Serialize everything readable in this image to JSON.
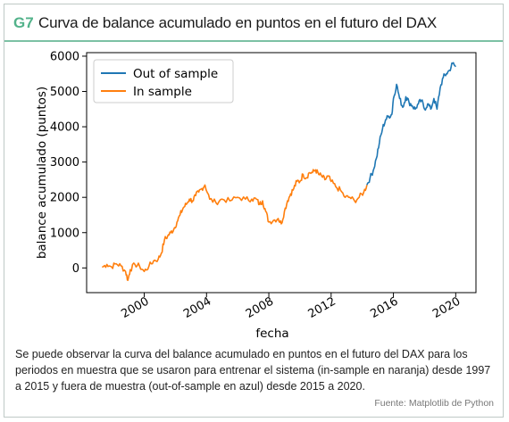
{
  "header": {
    "code": "G7",
    "title": "Curva de balance acumulado en puntos en el futuro del DAX"
  },
  "colors": {
    "accent": "#52b28a",
    "in_sample": "#ff7f0e",
    "out_of_sample": "#1f77b4"
  },
  "caption": "Se puede observar la curva del balance acumulado en puntos en el futuro del DAX para los periodos en muestra que se usaron para entrenar el sistema (in-sample en naranja) desde 1997 a 2015 y fuera de muestra (out-of-sample en azul) desde 2015 a 2020.",
  "source": "Fuente: Matplotlib de Python",
  "chart_data": {
    "type": "line",
    "title": "",
    "xlabel": "fecha",
    "ylabel": "balance acumulado (puntos)",
    "xlim": [
      1996.3,
      2021.3
    ],
    "ylim": [
      -700,
      6100
    ],
    "xticks": [
      "2000",
      "2004",
      "2008",
      "2012",
      "2016",
      "2020"
    ],
    "yticks": [
      "0",
      "1000",
      "2000",
      "3000",
      "4000",
      "5000",
      "6000"
    ],
    "grid": false,
    "legend": "top-left",
    "series": [
      {
        "name": "In sample",
        "color": "#ff7f0e",
        "x": [
          1997.3,
          1997.6,
          1997.9,
          1998.2,
          1998.5,
          1998.8,
          1998.95,
          1999.1,
          1999.4,
          1999.7,
          2000.0,
          2000.3,
          2000.6,
          2000.9,
          2001.1,
          2001.3,
          2001.5,
          2001.7,
          2001.9,
          2002.1,
          2002.3,
          2002.5,
          2002.7,
          2002.9,
          2003.1,
          2003.3,
          2003.5,
          2003.7,
          2003.9,
          2004.2,
          2004.6,
          2005.0,
          2005.5,
          2006.0,
          2006.5,
          2006.9,
          2007.2,
          2007.4,
          2007.6,
          2007.8,
          2008.0,
          2008.3,
          2008.6,
          2008.8,
          2009.0,
          2009.2,
          2009.4,
          2009.6,
          2009.8,
          2010.0,
          2010.2,
          2010.4,
          2010.6,
          2010.8,
          2011.0,
          2011.2,
          2011.4,
          2011.6,
          2011.8,
          2012.0,
          2012.3,
          2012.6,
          2012.9,
          2013.2,
          2013.5,
          2013.8,
          2014.1,
          2014.3
        ],
        "y": [
          20,
          100,
          30,
          120,
          60,
          -100,
          -350,
          -50,
          100,
          50,
          -100,
          50,
          200,
          250,
          420,
          800,
          900,
          1000,
          1100,
          1300,
          1500,
          1700,
          1800,
          1950,
          1900,
          2050,
          2150,
          2250,
          2350,
          1950,
          1850,
          1950,
          1900,
          2000,
          1950,
          1950,
          1950,
          1800,
          1900,
          1600,
          1300,
          1350,
          1400,
          1250,
          1600,
          1900,
          2100,
          2250,
          2450,
          2450,
          2650,
          2550,
          2700,
          2700,
          2780,
          2650,
          2600,
          2500,
          2600,
          2450,
          2300,
          2200,
          2000,
          2000,
          1900,
          2000,
          2150,
          2350
        ]
      },
      {
        "name": "Out of sample",
        "color": "#1f77b4",
        "x": [
          2014.3,
          2014.5,
          2014.7,
          2014.9,
          2015.1,
          2015.3,
          2015.5,
          2015.7,
          2015.9,
          2016.0,
          2016.2,
          2016.4,
          2016.6,
          2016.8,
          2017.0,
          2017.2,
          2017.4,
          2017.6,
          2017.8,
          2018.0,
          2018.2,
          2018.4,
          2018.6,
          2018.8,
          2019.0,
          2019.2,
          2019.4,
          2019.6,
          2019.8,
          2020.0
        ],
        "y": [
          2350,
          2550,
          2750,
          3100,
          3550,
          3950,
          4200,
          4300,
          4350,
          4800,
          5200,
          4800,
          4550,
          4850,
          4700,
          4600,
          4500,
          4650,
          4750,
          4500,
          4650,
          4500,
          4800,
          4500,
          5100,
          5400,
          5500,
          5600,
          5800,
          5700
        ]
      }
    ]
  }
}
